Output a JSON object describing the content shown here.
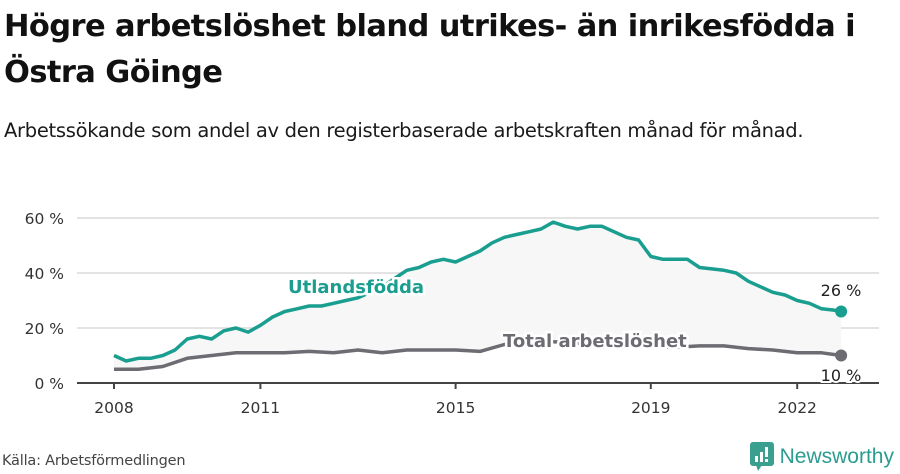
{
  "header": {
    "title": "Högre arbetslöshet bland utrikes- än inrikesfödda i Östra Göinge",
    "subtitle": "Arbetssökande som andel av den registerbaserade arbetskraften månad för månad."
  },
  "footer": {
    "source": "Källa: Arbetsförmedlingen",
    "brand": "Newsworthy",
    "brand_icon": "bar-chart-speech-bubble-icon"
  },
  "colors": {
    "utlandsfodda": "#1a9e8f",
    "total": "#6e6c73",
    "fill": "#f7f7f7",
    "grid": "#e3e3e3",
    "axis": "#444444"
  },
  "chart_data": {
    "type": "line",
    "title": "Högre arbetslöshet bland utrikes- än inrikesfödda i Östra Göinge",
    "subtitle": "Arbetssökande som andel av den registerbaserade arbetskraften månad för månad.",
    "xlabel": "",
    "ylabel": "",
    "ylim": [
      0,
      60
    ],
    "yticks": [
      0,
      20,
      40,
      60
    ],
    "ytick_labels": [
      "0 %",
      "20 %",
      "40 %",
      "60 %"
    ],
    "xticks": [
      2008,
      2011,
      2015,
      2019,
      2022
    ],
    "xtick_labels": [
      "2008",
      "2011",
      "2015",
      "2019",
      "2022"
    ],
    "grid": true,
    "legend": "inline labels",
    "series": [
      {
        "name": "Utlandsfödda",
        "color": "#1a9e8f",
        "end_label": "26 %",
        "x": [
          2008.0,
          2008.25,
          2008.5,
          2008.75,
          2009.0,
          2009.25,
          2009.5,
          2009.75,
          2010.0,
          2010.25,
          2010.5,
          2010.75,
          2011.0,
          2011.25,
          2011.5,
          2011.75,
          2012.0,
          2012.25,
          2012.5,
          2012.75,
          2013.0,
          2013.25,
          2013.5,
          2013.75,
          2014.0,
          2014.25,
          2014.5,
          2014.75,
          2015.0,
          2015.25,
          2015.5,
          2015.75,
          2016.0,
          2016.25,
          2016.5,
          2016.75,
          2017.0,
          2017.25,
          2017.5,
          2017.75,
          2018.0,
          2018.25,
          2018.5,
          2018.75,
          2019.0,
          2019.25,
          2019.5,
          2019.75,
          2020.0,
          2020.25,
          2020.5,
          2020.75,
          2021.0,
          2021.25,
          2021.5,
          2021.75,
          2022.0,
          2022.25,
          2022.5,
          2022.75,
          2022.9
        ],
        "values": [
          10,
          8,
          9,
          9,
          10,
          12,
          16,
          17,
          16,
          19,
          20,
          18.5,
          21,
          24,
          26,
          27,
          28,
          28,
          29,
          30,
          31,
          33,
          35,
          38,
          41,
          42,
          44,
          45,
          44,
          46,
          48,
          51,
          53,
          54,
          55,
          56,
          58.5,
          57,
          56,
          57,
          57,
          55,
          53,
          52,
          46,
          45,
          45,
          45,
          42,
          41.5,
          41,
          40,
          37,
          35,
          33,
          32,
          30,
          29,
          27,
          26.5,
          26
        ]
      },
      {
        "name": "Total arbetslöshet",
        "color": "#6e6c73",
        "end_label": "10 %",
        "x": [
          2008.0,
          2008.5,
          2009.0,
          2009.5,
          2010.0,
          2010.5,
          2011.0,
          2011.5,
          2012.0,
          2012.5,
          2013.0,
          2013.5,
          2014.0,
          2014.5,
          2015.0,
          2015.5,
          2016.0,
          2016.5,
          2017.0,
          2017.5,
          2018.0,
          2018.5,
          2019.0,
          2019.5,
          2020.0,
          2020.5,
          2021.0,
          2021.5,
          2022.0,
          2022.5,
          2022.9
        ],
        "values": [
          5,
          5,
          6,
          9,
          10,
          11,
          11,
          11,
          11.5,
          11,
          12,
          11,
          12,
          12,
          12,
          11.5,
          14,
          15,
          15,
          14.5,
          14,
          13.5,
          13,
          13,
          13.5,
          13.5,
          12.5,
          12,
          11,
          11,
          10
        ]
      }
    ]
  }
}
